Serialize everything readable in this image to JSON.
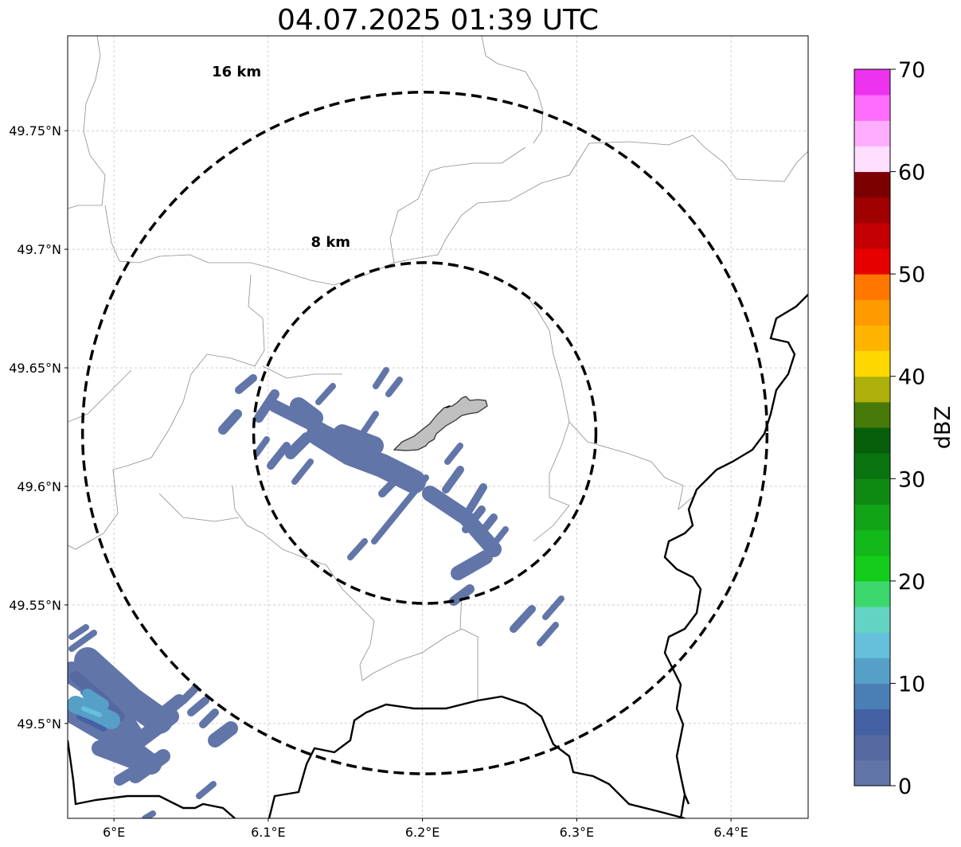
{
  "title": "04.07.2025 01:39 UTC",
  "map": {
    "extent": {
      "lon": [
        5.97,
        6.45
      ],
      "lat": [
        49.46,
        49.79
      ]
    },
    "center": {
      "lon": 6.2015,
      "lat": 49.6225
    },
    "lat_ticks": [
      {
        "value": 49.5,
        "label": "49.5°N"
      },
      {
        "value": 49.55,
        "label": "49.55°N"
      },
      {
        "value": 49.6,
        "label": "49.6°N"
      },
      {
        "value": 49.65,
        "label": "49.65°N"
      },
      {
        "value": 49.7,
        "label": "49.7°N"
      },
      {
        "value": 49.75,
        "label": "49.75°N"
      }
    ],
    "lon_ticks": [
      {
        "value": 6.0,
        "label": "6°E"
      },
      {
        "value": 6.1,
        "label": "6.1°E"
      },
      {
        "value": 6.2,
        "label": "6.2°E"
      },
      {
        "value": 6.3,
        "label": "6.3°E"
      },
      {
        "value": 6.4,
        "label": "6.4°E"
      }
    ],
    "grid": true,
    "range_rings": [
      {
        "label": "8 km",
        "radius_km": 8
      },
      {
        "label": "16 km",
        "radius_km": 16
      }
    ],
    "echo_color_dominant": "#6275a8"
  },
  "colorbar": {
    "label": "dBZ",
    "min": 0,
    "max": 70,
    "ticks": [
      {
        "value": 0,
        "label": "0"
      },
      {
        "value": 10,
        "label": "10"
      },
      {
        "value": 20,
        "label": "20"
      },
      {
        "value": 30,
        "label": "30"
      },
      {
        "value": 40,
        "label": "40"
      },
      {
        "value": 50,
        "label": "50"
      },
      {
        "value": 60,
        "label": "60"
      },
      {
        "value": 70,
        "label": "70"
      }
    ],
    "colors": [
      "#6275a8",
      "#5568a0",
      "#4560a3",
      "#4a7fb5",
      "#56a0c8",
      "#64c0db",
      "#63d4c3",
      "#3dd86d",
      "#14cc1a",
      "#13b81a",
      "#12a417",
      "#0e8a12",
      "#0a7410",
      "#075f0c",
      "#477a08",
      "#aeb00b",
      "#ffd800",
      "#ffb400",
      "#ff9a00",
      "#ff7700",
      "#e60000",
      "#c40000",
      "#a00000",
      "#7d0000",
      "#ffddfe",
      "#ffaeff",
      "#ff6dff",
      "#ee33ee"
    ]
  }
}
